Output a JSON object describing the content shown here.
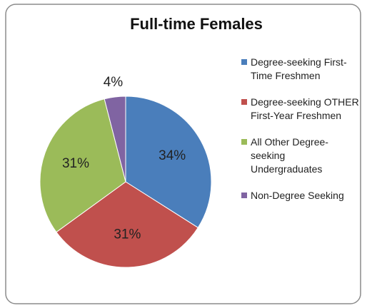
{
  "chart_data": {
    "type": "pie",
    "title": "Full-time Females",
    "categories": [
      "Degree-seeking First-Time Freshmen",
      "Degree-seeking OTHER First-Year Freshmen",
      "All Other Degree-seeking Undergraduates",
      "Non-Degree Seeking"
    ],
    "values": [
      34,
      31,
      31,
      4
    ],
    "value_labels": [
      "34%",
      "31%",
      "31%",
      "4%"
    ],
    "colors": [
      "#4a7ebb",
      "#c0504d",
      "#9bbb59",
      "#8064a2"
    ],
    "legend": "right"
  }
}
